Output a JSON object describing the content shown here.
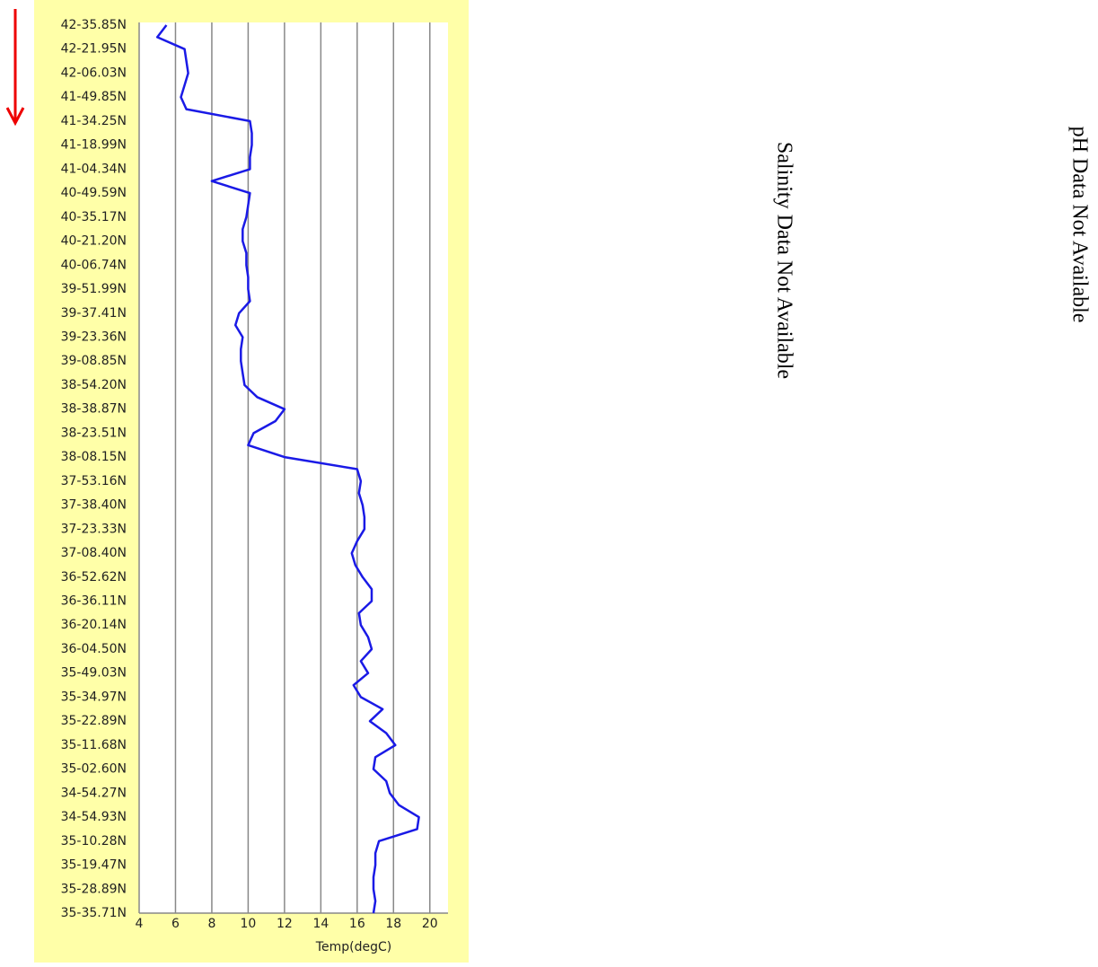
{
  "chart_data": {
    "type": "line",
    "orientation": "vertical",
    "xlabel": "Temp(degC)",
    "categories": [
      "42-35.85N",
      null,
      "42-21.95N",
      null,
      "42-06.03N",
      null,
      "41-49.85N",
      null,
      "41-34.25N",
      null,
      "41-18.99N",
      null,
      "41-04.34N",
      null,
      "40-49.59N",
      null,
      "40-35.17N",
      null,
      "40-21.20N",
      null,
      "40-06.74N",
      null,
      "39-51.99N",
      null,
      "39-37.41N",
      null,
      "39-23.36N",
      null,
      "39-08.85N",
      null,
      "38-54.20N",
      null,
      "38-38.87N",
      null,
      "38-23.51N",
      null,
      "38-08.15N",
      null,
      "37-53.16N",
      null,
      "37-38.40N",
      null,
      "37-23.33N",
      null,
      "37-08.40N",
      null,
      "36-52.62N",
      null,
      "36-36.11N",
      null,
      "36-20.14N",
      null,
      "36-04.50N",
      null,
      "35-49.03N",
      null,
      "35-34.97N",
      null,
      "35-22.89N",
      null,
      "35-11.68N",
      null,
      "35-02.60N",
      null,
      "34-54.27N",
      null,
      "34-54.93N",
      null,
      "35-10.28N",
      null,
      "35-19.47N",
      null,
      "35-28.89N",
      null,
      "35-35.71N"
    ],
    "values": [
      5.5,
      5.0,
      6.5,
      6.6,
      6.7,
      6.5,
      6.3,
      6.6,
      10.1,
      10.2,
      10.2,
      10.1,
      10.1,
      8.0,
      10.1,
      10.0,
      9.9,
      9.7,
      9.7,
      9.9,
      9.9,
      10.0,
      10.0,
      10.1,
      9.5,
      9.3,
      9.7,
      9.6,
      9.6,
      9.7,
      9.8,
      10.5,
      12.0,
      11.5,
      10.3,
      10.0,
      12.0,
      16.0,
      16.2,
      16.1,
      16.3,
      16.4,
      16.4,
      16.0,
      15.7,
      15.9,
      16.3,
      16.8,
      16.8,
      16.1,
      16.2,
      16.6,
      16.8,
      16.2,
      16.6,
      15.8,
      16.2,
      17.4,
      16.7,
      17.6,
      18.1,
      17.0,
      16.9,
      17.6,
      17.8,
      18.3,
      19.4,
      19.3,
      17.2,
      17.0,
      17.0,
      16.9,
      16.9,
      17.0,
      16.9
    ],
    "color": "#1a1ae6",
    "xlim": [
      4,
      21
    ],
    "xticks": [
      4,
      6,
      8,
      10,
      12,
      14,
      16,
      18,
      20
    ],
    "grid": true,
    "annotations": [
      "Salinity Data Not Available",
      "pH Data Not Available"
    ]
  }
}
